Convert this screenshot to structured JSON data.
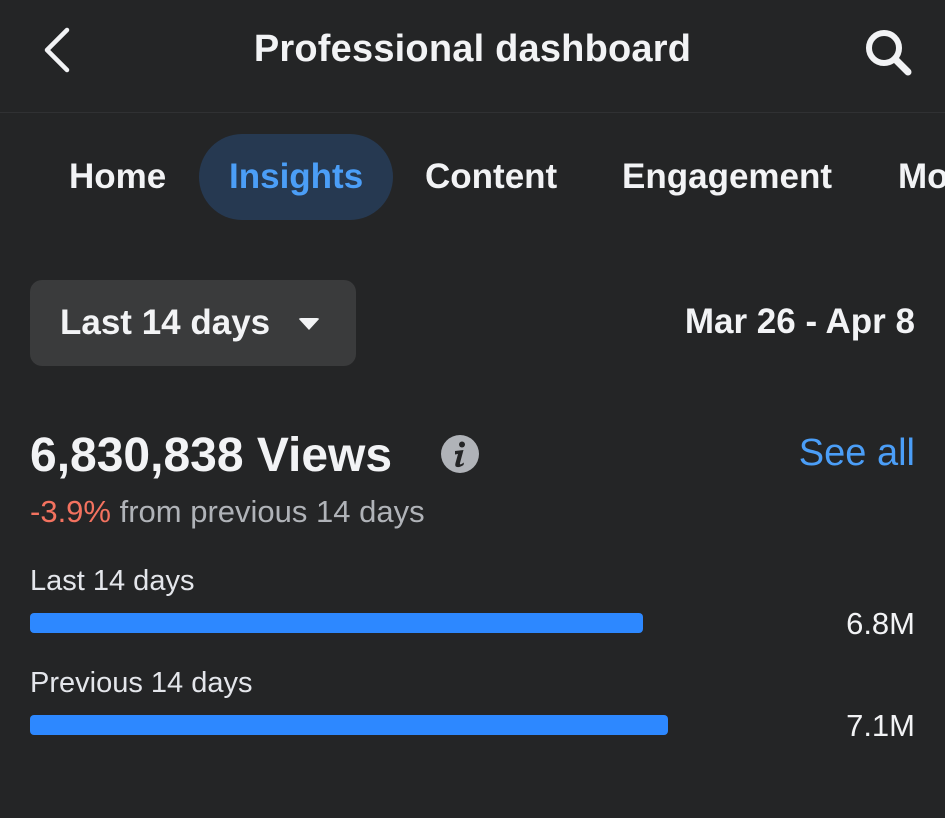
{
  "header": {
    "title": "Professional dashboard",
    "back_icon": "chevron-left-icon",
    "search_icon": "search-icon"
  },
  "tabs": [
    {
      "label": "Home",
      "active": false
    },
    {
      "label": "Insights",
      "active": true
    },
    {
      "label": "Content",
      "active": false
    },
    {
      "label": "Engagement",
      "active": false
    },
    {
      "label": "Mo",
      "active": false
    }
  ],
  "period": {
    "selected": "Last 14 days",
    "range": "Mar 26 - Apr 8"
  },
  "views": {
    "total_label": "6,830,838 Views",
    "see_all": "See all",
    "change_pct": "-3.9%",
    "change_text": "from previous 14 days"
  },
  "comparison": [
    {
      "label": "Last 14 days",
      "value_label": "6.8M",
      "value": 6830838
    },
    {
      "label": "Previous 14 days",
      "value_label": "7.1M",
      "value": 7108000
    }
  ],
  "colors": {
    "background": "#242526",
    "accent": "#4b9ef7",
    "bar": "#2d88ff",
    "negative": "#f3725f",
    "active_tab_bg": "#263951"
  }
}
